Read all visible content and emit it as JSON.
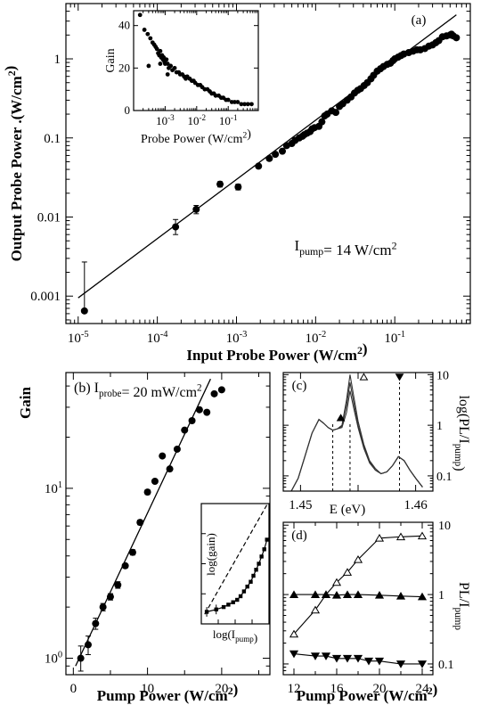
{
  "chart_data": [
    {
      "panel": "a",
      "type": "scatter",
      "label": "(a)",
      "xlabel": "Input Probe Power (W/cm²)",
      "ylabel": "Output Probe Power .(W/cm²)",
      "xscale": "log",
      "yscale": "log",
      "xlim": [
        7e-06,
        0.9
      ],
      "ylim": [
        0.00045,
        5
      ],
      "xticks": [
        {
          "v": 1e-05,
          "b": "10",
          "e": "-5"
        },
        {
          "v": 0.0001,
          "b": "10",
          "e": "-4"
        },
        {
          "v": 0.001,
          "b": "10",
          "e": "-3"
        },
        {
          "v": 0.01,
          "b": "10",
          "e": "-2"
        },
        {
          "v": 0.1,
          "b": "10",
          "e": "-1"
        }
      ],
      "yticks": [
        {
          "v": 0.001,
          "t": "0.001"
        },
        {
          "v": 0.01,
          "t": "0.01"
        },
        {
          "v": 0.1,
          "t": "0.1"
        },
        {
          "v": 1,
          "t": "1"
        }
      ],
      "annotation": "I_pump= 14 W/cm²",
      "annotation_parts": {
        "base": "I",
        "sub": "pump",
        "rest": "= 14 W/cm",
        "sup": "2"
      },
      "fit_line": {
        "x": [
          1e-05,
          0.6
        ],
        "y": [
          0.00095,
          3.6
        ]
      },
      "points_with_error": [
        {
          "x": 1.2e-05,
          "y": 0.00065,
          "lo": 0.00062,
          "hi": 0.0027
        },
        {
          "x": 0.00017,
          "y": 0.0075,
          "lo": 0.006,
          "hi": 0.0093
        },
        {
          "x": 0.00031,
          "y": 0.0125,
          "lo": 0.011,
          "hi": 0.014
        },
        {
          "x": 0.00062,
          "y": 0.026,
          "lo": 0.024,
          "hi": 0.028
        },
        {
          "x": 0.00105,
          "y": 0.024,
          "lo": 0.022,
          "hi": 0.026
        }
      ],
      "points": [
        [
          0.0019,
          0.044
        ],
        [
          0.0026,
          0.055
        ],
        [
          0.0031,
          0.062
        ],
        [
          0.0038,
          0.068
        ],
        [
          0.0043,
          0.08
        ],
        [
          0.005,
          0.085
        ],
        [
          0.0055,
          0.093
        ],
        [
          0.0062,
          0.1
        ],
        [
          0.0068,
          0.105
        ],
        [
          0.0072,
          0.11
        ],
        [
          0.0078,
          0.115
        ],
        [
          0.0085,
          0.12
        ],
        [
          0.009,
          0.13
        ],
        [
          0.0097,
          0.135
        ],
        [
          0.011,
          0.14
        ],
        [
          0.012,
          0.16
        ],
        [
          0.013,
          0.19
        ],
        [
          0.014,
          0.2
        ],
        [
          0.016,
          0.22
        ],
        [
          0.018,
          0.21
        ],
        [
          0.02,
          0.25
        ],
        [
          0.022,
          0.27
        ],
        [
          0.025,
          0.3
        ],
        [
          0.028,
          0.33
        ],
        [
          0.031,
          0.37
        ],
        [
          0.034,
          0.4
        ],
        [
          0.037,
          0.42
        ],
        [
          0.041,
          0.46
        ],
        [
          0.045,
          0.5
        ],
        [
          0.05,
          0.56
        ],
        [
          0.054,
          0.62
        ],
        [
          0.06,
          0.7
        ],
        [
          0.066,
          0.75
        ],
        [
          0.072,
          0.8
        ],
        [
          0.08,
          0.85
        ],
        [
          0.088,
          0.88
        ],
        [
          0.095,
          0.95
        ],
        [
          0.1,
          1.0
        ],
        [
          0.11,
          1.05
        ],
        [
          0.12,
          1.1
        ],
        [
          0.13,
          1.15
        ],
        [
          0.15,
          1.2
        ],
        [
          0.17,
          1.25
        ],
        [
          0.19,
          1.3
        ],
        [
          0.21,
          1.3
        ],
        [
          0.24,
          1.35
        ],
        [
          0.27,
          1.45
        ],
        [
          0.3,
          1.5
        ],
        [
          0.33,
          1.6
        ],
        [
          0.36,
          1.7
        ],
        [
          0.4,
          1.9
        ],
        [
          0.45,
          1.95
        ],
        [
          0.5,
          2.0
        ],
        [
          0.55,
          1.95
        ],
        [
          0.6,
          1.85
        ],
        [
          0.52,
          2.05
        ]
      ]
    },
    {
      "panel": "a-inset",
      "type": "scatter",
      "xlabel": "Probe Power (W/cm²)",
      "ylabel": "Gain",
      "xscale": "log",
      "xlim": [
        0.0001,
        0.9
      ],
      "ylim": [
        0,
        47
      ],
      "yticks": [
        0,
        20,
        40
      ],
      "xticks": [
        {
          "v": 0.001,
          "b": "10",
          "e": "-3"
        },
        {
          "v": 0.01,
          "b": "10",
          "e": "-2"
        },
        {
          "v": 0.1,
          "b": "10",
          "e": "-1"
        }
      ],
      "points": [
        [
          0.00016,
          45
        ],
        [
          0.00022,
          38
        ],
        [
          0.00028,
          36
        ],
        [
          0.00034,
          34
        ],
        [
          0.0004,
          32
        ],
        [
          0.00045,
          31
        ],
        [
          0.0005,
          30
        ],
        [
          0.00055,
          29
        ],
        [
          0.0006,
          27
        ],
        [
          0.00065,
          26
        ],
        [
          0.0007,
          28
        ],
        [
          0.00075,
          25
        ],
        [
          0.0008,
          26
        ],
        [
          0.00085,
          24
        ],
        [
          0.0009,
          25
        ],
        [
          0.00095,
          23
        ],
        [
          0.001,
          22
        ],
        [
          0.0011,
          24
        ],
        [
          0.0012,
          22
        ],
        [
          0.0013,
          20
        ],
        [
          0.0015,
          21
        ],
        [
          0.0017,
          19
        ],
        [
          0.002,
          20
        ],
        [
          0.0023,
          18
        ],
        [
          0.0027,
          18
        ],
        [
          0.003,
          17
        ],
        [
          0.0035,
          17
        ],
        [
          0.004,
          16
        ],
        [
          0.0045,
          15
        ],
        [
          0.005,
          16
        ],
        [
          0.006,
          15
        ],
        [
          0.007,
          14
        ],
        [
          0.008,
          14
        ],
        [
          0.009,
          13
        ],
        [
          0.011,
          12
        ],
        [
          0.013,
          12
        ],
        [
          0.015,
          11
        ],
        [
          0.018,
          10
        ],
        [
          0.022,
          10
        ],
        [
          0.026,
          9
        ],
        [
          0.03,
          8
        ],
        [
          0.035,
          8
        ],
        [
          0.04,
          7
        ],
        [
          0.05,
          7
        ],
        [
          0.06,
          6
        ],
        [
          0.07,
          6
        ],
        [
          0.085,
          5
        ],
        [
          0.1,
          5
        ],
        [
          0.13,
          4
        ],
        [
          0.16,
          4
        ],
        [
          0.2,
          4
        ],
        [
          0.26,
          3
        ],
        [
          0.33,
          3
        ],
        [
          0.42,
          3
        ],
        [
          0.55,
          3
        ],
        [
          0.0003,
          21
        ],
        [
          0.0007,
          22
        ],
        [
          0.0012,
          17
        ]
      ]
    },
    {
      "panel": "b",
      "type": "scatter",
      "label": "(b) I_probe= 20 mW/cm²",
      "label_parts": {
        "pre": "(b) I",
        "sub": "probe",
        "rest": "= 20 mW/cm",
        "sup": "2"
      },
      "xlabel": "Pump Power (W/cm²)",
      "ylabel": "Gain",
      "yscale": "log",
      "xlim": [
        -1,
        26.5
      ],
      "ylim": [
        0.8,
        48
      ],
      "xticks": [
        0,
        10,
        20
      ],
      "yticks": [
        {
          "v": 1,
          "b": "10",
          "e": "0"
        },
        {
          "v": 10,
          "b": "10",
          "e": "1"
        }
      ],
      "fit_line": {
        "x": [
          0.3,
          18.5
        ],
        "y": [
          0.9,
          44
        ]
      },
      "points": [
        {
          "x": 1,
          "y": 1.0,
          "lo": 0.84,
          "hi": 1.18
        },
        {
          "x": 2,
          "y": 1.2,
          "lo": 1.05,
          "hi": 1.35
        },
        {
          "x": 3,
          "y": 1.6,
          "lo": 1.48,
          "hi": 1.72
        },
        {
          "x": 4,
          "y": 2.0,
          "lo": 1.9,
          "hi": 2.1
        },
        {
          "x": 5,
          "y": 2.3,
          "lo": 2.2,
          "hi": 2.4
        },
        {
          "x": 6,
          "y": 2.7,
          "lo": 2.58,
          "hi": 2.82
        },
        {
          "x": 7,
          "y": 3.5,
          "lo": 3.4,
          "hi": 3.6
        },
        {
          "x": 8,
          "y": 4.2,
          "lo": 4.05,
          "hi": 4.35
        },
        {
          "x": 9,
          "y": 6.3,
          "lo": 6.1,
          "hi": 6.5
        },
        {
          "x": 10,
          "y": 9.5,
          "lo": 9.2,
          "hi": 9.8
        },
        {
          "x": 11,
          "y": 11,
          "lo": null,
          "hi": null
        },
        {
          "x": 12,
          "y": 15.5,
          "lo": null,
          "hi": null
        },
        {
          "x": 13,
          "y": 13,
          "lo": null,
          "hi": null
        },
        {
          "x": 14,
          "y": 17,
          "lo": null,
          "hi": null
        },
        {
          "x": 15,
          "y": 22,
          "lo": null,
          "hi": null
        },
        {
          "x": 16,
          "y": 25,
          "lo": null,
          "hi": null
        },
        {
          "x": 17,
          "y": 29,
          "lo": null,
          "hi": null
        },
        {
          "x": 18,
          "y": 28,
          "lo": null,
          "hi": null
        },
        {
          "x": 19,
          "y": 36,
          "lo": null,
          "hi": null
        },
        {
          "x": 20,
          "y": 38,
          "lo": null,
          "hi": null
        }
      ]
    },
    {
      "panel": "b-inset",
      "type": "line",
      "xlabel": "log(I_pump)",
      "xlabel_parts": {
        "pre": "log(I",
        "sub": "pump",
        "post": ")"
      },
      "ylabel": "log(gain)",
      "xlim": [
        0,
        1
      ],
      "ylim": [
        0,
        1
      ],
      "dashed_line": {
        "x": [
          0.05,
          0.98
        ],
        "y": [
          0.08,
          1.0
        ]
      },
      "points": [
        {
          "x": 0.08,
          "y": 0.1,
          "e": 0.04
        },
        {
          "x": 0.22,
          "y": 0.12,
          "e": 0.04
        },
        {
          "x": 0.33,
          "y": 0.14
        },
        {
          "x": 0.4,
          "y": 0.16
        },
        {
          "x": 0.47,
          "y": 0.18
        },
        {
          "x": 0.53,
          "y": 0.2
        },
        {
          "x": 0.58,
          "y": 0.23
        },
        {
          "x": 0.63,
          "y": 0.27
        },
        {
          "x": 0.68,
          "y": 0.31
        },
        {
          "x": 0.73,
          "y": 0.35
        },
        {
          "x": 0.77,
          "y": 0.4
        },
        {
          "x": 0.81,
          "y": 0.45
        },
        {
          "x": 0.85,
          "y": 0.5
        },
        {
          "x": 0.89,
          "y": 0.56
        },
        {
          "x": 0.93,
          "y": 0.62
        },
        {
          "x": 0.97,
          "y": 0.7
        }
      ]
    },
    {
      "panel": "c",
      "type": "line",
      "label": "(c)",
      "xlabel": "E (eV)",
      "ylabel": "log(PL/I_pump)",
      "ylabel_parts": {
        "pre": "log(PL/I",
        "sub": "pump",
        "post": ")"
      },
      "yscale": "log",
      "xlim": [
        1.4485,
        1.4615
      ],
      "ylim": [
        0.05,
        11
      ],
      "xticks": [
        {
          "v": 1.45,
          "t": "1.45"
        },
        {
          "v": 1.455,
          "t": ""
        },
        {
          "v": 1.46,
          "t": "1.46"
        }
      ],
      "yticks": [
        {
          "v": 0.1,
          "t": "0.1"
        },
        {
          "v": 1,
          "t": "1"
        },
        {
          "v": 10,
          "t": "10"
        }
      ],
      "marker_lines": [
        1.4528,
        1.4543,
        1.4586
      ],
      "markers": [
        {
          "x": 1.4535,
          "y": 1.4,
          "symbol": "triangle-filled"
        },
        {
          "x": 1.4555,
          "y": 9.0,
          "symbol": "triangle-open"
        },
        {
          "x": 1.4586,
          "y": 9.0,
          "symbol": "triangle-down-filled"
        }
      ],
      "series": [
        {
          "x": [
            1.4492,
            1.4498,
            1.4504,
            1.451,
            1.4516,
            1.452,
            1.4524,
            1.4528,
            1.4532,
            1.4536,
            1.454,
            1.4543,
            1.4546,
            1.455,
            1.4555,
            1.456,
            1.4565,
            1.457,
            1.4575,
            1.458,
            1.4585,
            1.459,
            1.4595,
            1.46,
            1.4606
          ],
          "y": [
            0.05,
            0.09,
            0.25,
            0.7,
            1.3,
            1.1,
            0.9,
            0.8,
            0.85,
            0.9,
            1.8,
            4.8,
            2.3,
            0.9,
            0.35,
            0.18,
            0.13,
            0.11,
            0.12,
            0.16,
            0.24,
            0.2,
            0.13,
            0.09,
            0.06
          ]
        },
        {
          "x": [
            1.4492,
            1.4498,
            1.4504,
            1.451,
            1.4516,
            1.452,
            1.4524,
            1.4528,
            1.4532,
            1.4536,
            1.454,
            1.4543,
            1.4546,
            1.455,
            1.4555,
            1.456,
            1.4565,
            1.457,
            1.4575,
            1.458,
            1.4585,
            1.459,
            1.4595,
            1.46,
            1.4606
          ],
          "y": [
            0.05,
            0.09,
            0.25,
            0.7,
            1.3,
            1.1,
            0.9,
            0.8,
            0.85,
            0.95,
            2.5,
            7.0,
            3.0,
            1.0,
            0.38,
            0.19,
            0.13,
            0.11,
            0.12,
            0.16,
            0.24,
            0.2,
            0.13,
            0.09,
            0.06
          ]
        },
        {
          "x": [
            1.4492,
            1.4498,
            1.4504,
            1.451,
            1.4516,
            1.452,
            1.4524,
            1.4528,
            1.4532,
            1.4536,
            1.454,
            1.4543,
            1.4546,
            1.455,
            1.4555,
            1.456,
            1.4565,
            1.457,
            1.4575,
            1.458,
            1.4585,
            1.459,
            1.4595,
            1.46,
            1.4606
          ],
          "y": [
            0.05,
            0.09,
            0.25,
            0.7,
            1.3,
            1.1,
            0.9,
            0.8,
            0.85,
            1.0,
            3.2,
            10.0,
            4.0,
            1.2,
            0.42,
            0.2,
            0.14,
            0.11,
            0.12,
            0.16,
            0.24,
            0.2,
            0.13,
            0.09,
            0.06
          ]
        }
      ]
    },
    {
      "panel": "d",
      "type": "line",
      "label": "(d)",
      "xlabel": "Pump Power (W/cm²)",
      "ylabel": "PL/I_pump",
      "ylabel_parts": {
        "pre": "PL/I",
        "sub": "pump",
        "post": ""
      },
      "yscale": "log",
      "xlim": [
        11,
        25
      ],
      "ylim": [
        0.07,
        11
      ],
      "xticks": [
        {
          "v": 12,
          "t": "12"
        },
        {
          "v": 16,
          "t": "16"
        },
        {
          "v": 20,
          "t": "20"
        },
        {
          "v": 24,
          "t": "24"
        }
      ],
      "yticks": [
        {
          "v": 0.1,
          "t": "0.1"
        },
        {
          "v": 1,
          "t": "1"
        },
        {
          "v": 10,
          "t": "10"
        }
      ],
      "series": [
        {
          "symbol": "triangle-open",
          "x": [
            12,
            14,
            15,
            16,
            17,
            18,
            20,
            22,
            24
          ],
          "y": [
            0.27,
            0.6,
            1.0,
            1.5,
            2.1,
            3.2,
            6.5,
            6.8,
            7.0
          ]
        },
        {
          "symbol": "triangle-filled",
          "x": [
            12,
            14,
            15,
            16,
            17,
            18,
            20,
            22,
            24
          ],
          "y": [
            1.0,
            1.0,
            1.0,
            0.98,
            1.0,
            1.0,
            0.98,
            0.95,
            0.93
          ]
        },
        {
          "symbol": "triangle-down-filled",
          "x": [
            12,
            14,
            15,
            16,
            17,
            18,
            19,
            20,
            22,
            24
          ],
          "y": [
            0.14,
            0.13,
            0.13,
            0.12,
            0.12,
            0.12,
            0.11,
            0.11,
            0.1,
            0.1
          ]
        }
      ]
    }
  ]
}
